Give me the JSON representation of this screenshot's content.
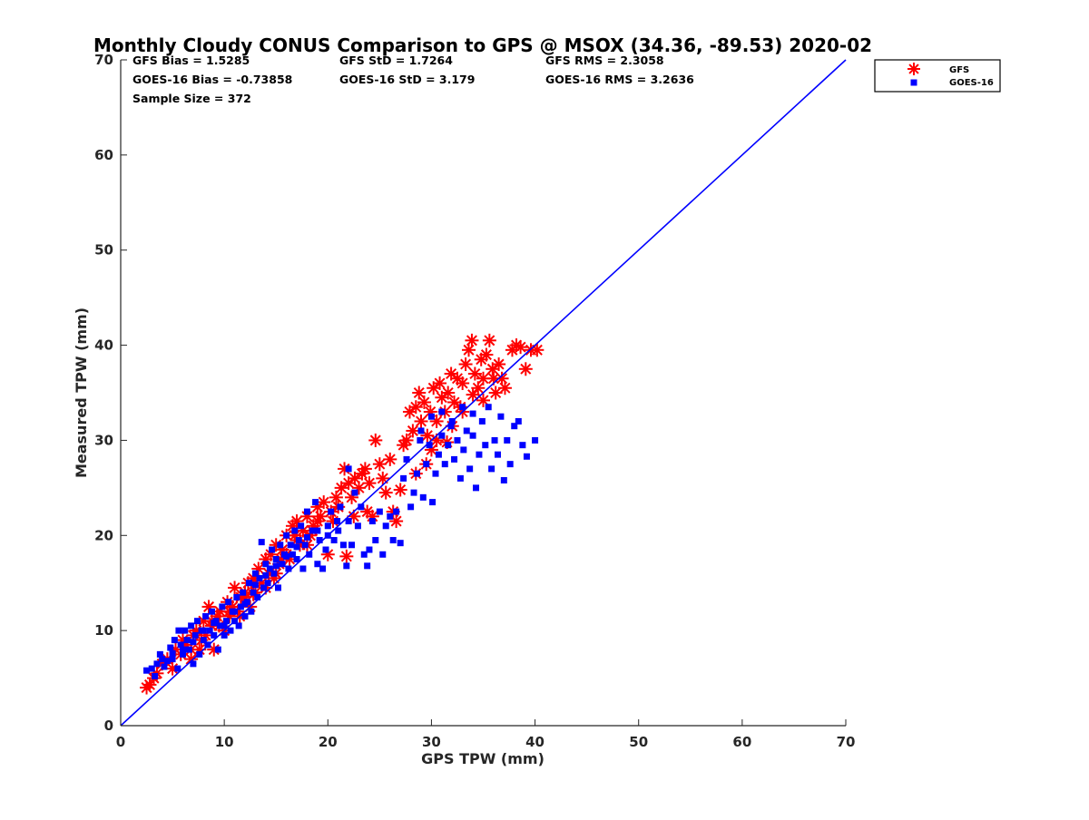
{
  "chart_data": {
    "type": "scatter",
    "title": "Monthly Cloudy CONUS Comparison to GPS @ MSOX (34.36, -89.53) 2020-02",
    "xlabel": "GPS TPW (mm)",
    "ylabel": "Measured TPW (mm)",
    "xlim": [
      0,
      70
    ],
    "ylim": [
      0,
      70
    ],
    "xticks": [
      "0",
      "10",
      "20",
      "30",
      "40",
      "50",
      "60",
      "70"
    ],
    "yticks": [
      "0",
      "10",
      "20",
      "30",
      "40",
      "50",
      "60",
      "70"
    ],
    "grid": false,
    "legend_position": "outside top-right",
    "stats": {
      "gfs_bias": "GFS Bias = 1.5285",
      "goes_bias": "GOES-16 Bias = -0.73858",
      "sample_size": "Sample Size = 372",
      "gfs_std": "GFS StD = 1.7264",
      "goes_std": "GOES-16 StD = 3.179",
      "gfs_rms": "GFS RMS = 2.3058",
      "goes_rms": "GOES-16 RMS = 3.2636"
    },
    "reference_line": {
      "x": [
        0,
        70
      ],
      "y": [
        0,
        70
      ],
      "color": "#0000ff"
    },
    "series": [
      {
        "name": "GFS",
        "marker": "asterisk",
        "color": "#ff0000",
        "points": [
          [
            2.5,
            4
          ],
          [
            2.8,
            4.3
          ],
          [
            3.2,
            5
          ],
          [
            3.5,
            5.5
          ],
          [
            4,
            6.5
          ],
          [
            4.5,
            7
          ],
          [
            5,
            6
          ],
          [
            5.3,
            8
          ],
          [
            5.8,
            7.5
          ],
          [
            6,
            9
          ],
          [
            6.3,
            8.5
          ],
          [
            6.8,
            7
          ],
          [
            7,
            9.5
          ],
          [
            7.3,
            10
          ],
          [
            7.6,
            8
          ],
          [
            8,
            11
          ],
          [
            8.2,
            9.5
          ],
          [
            8.5,
            12.5
          ],
          [
            8.8,
            10.5
          ],
          [
            9,
            8
          ],
          [
            9.3,
            11.5
          ],
          [
            9.6,
            12
          ],
          [
            10,
            10
          ],
          [
            10.3,
            13
          ],
          [
            10.5,
            11.5
          ],
          [
            10.8,
            12.5
          ],
          [
            11,
            14.5
          ],
          [
            11.3,
            12
          ],
          [
            11.6,
            13.5
          ],
          [
            12,
            14
          ],
          [
            12.3,
            15
          ],
          [
            12.5,
            12.5
          ],
          [
            12.8,
            15.5
          ],
          [
            13,
            14
          ],
          [
            13.3,
            16.5
          ],
          [
            13.6,
            15
          ],
          [
            14,
            17.5
          ],
          [
            14.3,
            16
          ],
          [
            14.5,
            18
          ],
          [
            14.8,
            15.5
          ],
          [
            15,
            19
          ],
          [
            15.3,
            17
          ],
          [
            15.6,
            18.5
          ],
          [
            16,
            20
          ],
          [
            16.3,
            17.5
          ],
          [
            16.6,
            21
          ],
          [
            17,
            21.5
          ],
          [
            17.3,
            19
          ],
          [
            17.6,
            20.5
          ],
          [
            18,
            22
          ],
          [
            18.3,
            20
          ],
          [
            18.6,
            21
          ],
          [
            19,
            23
          ],
          [
            19.3,
            22
          ],
          [
            19.6,
            23.5
          ],
          [
            20,
            18
          ],
          [
            20.3,
            22.5
          ],
          [
            20.8,
            24
          ],
          [
            21,
            23
          ],
          [
            21.3,
            25
          ],
          [
            21.6,
            27
          ],
          [
            21.8,
            17.8
          ],
          [
            22,
            25.5
          ],
          [
            22.3,
            24
          ],
          [
            22.6,
            26
          ],
          [
            23,
            25
          ],
          [
            23.3,
            26.5
          ],
          [
            23.6,
            27
          ],
          [
            23.8,
            22.5
          ],
          [
            24,
            25.5
          ],
          [
            24.3,
            22
          ],
          [
            24.6,
            30
          ],
          [
            25,
            27.5
          ],
          [
            25.3,
            26
          ],
          [
            25.6,
            24.5
          ],
          [
            26,
            28
          ],
          [
            26.3,
            22.5
          ],
          [
            26.6,
            21.5
          ],
          [
            27,
            24.8
          ],
          [
            27.3,
            29.5
          ],
          [
            27.6,
            30
          ],
          [
            27.9,
            33
          ],
          [
            28.2,
            31
          ],
          [
            28.5,
            33.5
          ],
          [
            28.8,
            35
          ],
          [
            29,
            32
          ],
          [
            29.3,
            34
          ],
          [
            29.6,
            30.5
          ],
          [
            29.9,
            33
          ],
          [
            30.2,
            35.5
          ],
          [
            30.5,
            32
          ],
          [
            30.8,
            36
          ],
          [
            31,
            34.5
          ],
          [
            31.3,
            33
          ],
          [
            31.6,
            35
          ],
          [
            31.9,
            37
          ],
          [
            32.2,
            34
          ],
          [
            32.5,
            36.5
          ],
          [
            32.8,
            33.5
          ],
          [
            33,
            36
          ],
          [
            33.3,
            38
          ],
          [
            33.6,
            39.5
          ],
          [
            33.9,
            40.5
          ],
          [
            34.2,
            37
          ],
          [
            34.5,
            35.5
          ],
          [
            34.8,
            38.5
          ],
          [
            35,
            36.5
          ],
          [
            35.3,
            39
          ],
          [
            35.6,
            40.5
          ],
          [
            35.9,
            37.5
          ],
          [
            36.2,
            35
          ],
          [
            36.5,
            38
          ],
          [
            36.8,
            36.5
          ],
          [
            37.1,
            35.5
          ],
          [
            37.8,
            39.5
          ],
          [
            38.2,
            40
          ],
          [
            38.6,
            39.8
          ],
          [
            39.1,
            37.5
          ],
          [
            39.6,
            39.5
          ],
          [
            40.2,
            39.5
          ],
          [
            30.5,
            30
          ],
          [
            31.5,
            29.8
          ],
          [
            29.5,
            27.5
          ],
          [
            28.5,
            26.5
          ],
          [
            30,
            29
          ],
          [
            32,
            31.5
          ],
          [
            33,
            33
          ],
          [
            34,
            34.8
          ],
          [
            35,
            34.2
          ],
          [
            36,
            36.5
          ],
          [
            12,
            13.5
          ],
          [
            13,
            15
          ],
          [
            14,
            14.5
          ],
          [
            15,
            16
          ],
          [
            16,
            18
          ],
          [
            17,
            19.5
          ],
          [
            18,
            19
          ],
          [
            19,
            21.5
          ],
          [
            10.5,
            12
          ],
          [
            9.5,
            10.5
          ],
          [
            8.8,
            11
          ],
          [
            7.8,
            9
          ],
          [
            6.8,
            8
          ],
          [
            11.5,
            11.5
          ],
          [
            12.8,
            13.8
          ],
          [
            15.5,
            17.5
          ],
          [
            16.8,
            20
          ],
          [
            18.5,
            20.5
          ],
          [
            20.5,
            21.5
          ],
          [
            22.5,
            22
          ]
        ]
      },
      {
        "name": "GOES-16",
        "marker": "square",
        "color": "#0000ff",
        "points": [
          [
            2.5,
            5.8
          ],
          [
            3,
            6
          ],
          [
            3.3,
            5.2
          ],
          [
            3.8,
            7.5
          ],
          [
            4.2,
            6.2
          ],
          [
            4.5,
            6.8
          ],
          [
            4.8,
            8.2
          ],
          [
            5,
            7
          ],
          [
            5.2,
            9
          ],
          [
            5.5,
            6
          ],
          [
            5.6,
            10
          ],
          [
            5.8,
            8.5
          ],
          [
            6,
            7.5
          ],
          [
            6.2,
            10
          ],
          [
            6.4,
            9
          ],
          [
            6.6,
            8
          ],
          [
            6.8,
            10.5
          ],
          [
            7,
            6.5
          ],
          [
            7.2,
            9.5
          ],
          [
            7.4,
            11
          ],
          [
            7.6,
            7.5
          ],
          [
            7.8,
            10
          ],
          [
            8,
            9
          ],
          [
            8.2,
            11.5
          ],
          [
            8.4,
            8.5
          ],
          [
            8.6,
            10
          ],
          [
            8.8,
            12
          ],
          [
            9,
            9.5
          ],
          [
            9.2,
            11
          ],
          [
            9.4,
            8
          ],
          [
            9.6,
            10.5
          ],
          [
            9.8,
            12.5
          ],
          [
            10,
            9.5
          ],
          [
            10.2,
            11
          ],
          [
            10.4,
            13
          ],
          [
            10.6,
            10
          ],
          [
            10.8,
            12
          ],
          [
            11,
            11
          ],
          [
            11.2,
            13.5
          ],
          [
            11.4,
            10.5
          ],
          [
            11.6,
            12.5
          ],
          [
            11.8,
            14
          ],
          [
            12,
            11.5
          ],
          [
            12.2,
            13
          ],
          [
            12.4,
            15
          ],
          [
            12.6,
            12
          ],
          [
            12.8,
            14
          ],
          [
            13,
            16
          ],
          [
            13.2,
            13.5
          ],
          [
            13.4,
            15.5
          ],
          [
            13.6,
            19.3
          ],
          [
            13.8,
            14.5
          ],
          [
            14,
            17
          ],
          [
            14.2,
            15
          ],
          [
            14.4,
            16.5
          ],
          [
            14.6,
            18.5
          ],
          [
            14.8,
            16
          ],
          [
            15,
            17.5
          ],
          [
            15.2,
            14.5
          ],
          [
            15.4,
            19
          ],
          [
            15.6,
            17
          ],
          [
            15.8,
            18
          ],
          [
            16,
            20
          ],
          [
            16.2,
            16.5
          ],
          [
            16.4,
            19
          ],
          [
            16.6,
            18
          ],
          [
            16.8,
            20.5
          ],
          [
            17,
            17.5
          ],
          [
            17.2,
            19.5
          ],
          [
            17.4,
            21
          ],
          [
            17.6,
            16.5
          ],
          [
            17.8,
            19
          ],
          [
            18,
            22.5
          ],
          [
            18.2,
            18
          ],
          [
            18.5,
            20.5
          ],
          [
            18.8,
            23.5
          ],
          [
            19,
            17
          ],
          [
            19.2,
            19.5
          ],
          [
            19.5,
            16.5
          ],
          [
            19.8,
            18.5
          ],
          [
            20,
            21
          ],
          [
            20.3,
            22.5
          ],
          [
            20.6,
            19.5
          ],
          [
            20.9,
            21.5
          ],
          [
            21.2,
            23
          ],
          [
            21.5,
            19
          ],
          [
            21.8,
            16.8
          ],
          [
            22,
            27
          ],
          [
            22.3,
            19
          ],
          [
            22.6,
            24.5
          ],
          [
            22.9,
            21
          ],
          [
            23.2,
            23
          ],
          [
            23.5,
            18
          ],
          [
            23.8,
            16.8
          ],
          [
            24,
            18.5
          ],
          [
            24.3,
            21.5
          ],
          [
            24.6,
            19.5
          ],
          [
            25,
            22.5
          ],
          [
            25.3,
            18
          ],
          [
            25.6,
            21
          ],
          [
            26,
            22
          ],
          [
            26.3,
            19.5
          ],
          [
            26.6,
            22.5
          ],
          [
            27,
            19.2
          ],
          [
            27.3,
            26
          ],
          [
            27.6,
            28
          ],
          [
            28,
            23
          ],
          [
            28.3,
            24.5
          ],
          [
            28.6,
            26.5
          ],
          [
            28.9,
            30
          ],
          [
            29.2,
            24
          ],
          [
            29.5,
            27.5
          ],
          [
            29.8,
            29.5
          ],
          [
            30.1,
            23.5
          ],
          [
            30.4,
            26.5
          ],
          [
            30.7,
            28.5
          ],
          [
            31,
            30.5
          ],
          [
            31.3,
            27.5
          ],
          [
            31.6,
            29.5
          ],
          [
            31.9,
            31.5
          ],
          [
            32.2,
            28
          ],
          [
            32.5,
            30
          ],
          [
            32.8,
            26
          ],
          [
            33.1,
            29
          ],
          [
            33.4,
            31
          ],
          [
            33.7,
            27
          ],
          [
            34,
            30.5
          ],
          [
            34.3,
            25
          ],
          [
            34.6,
            28.5
          ],
          [
            34.9,
            32
          ],
          [
            35.2,
            29.5
          ],
          [
            35.5,
            33.5
          ],
          [
            35.8,
            27
          ],
          [
            36.1,
            30
          ],
          [
            36.4,
            28.5
          ],
          [
            36.7,
            32.5
          ],
          [
            37,
            25.8
          ],
          [
            37.3,
            30
          ],
          [
            37.6,
            27.5
          ],
          [
            38,
            31.5
          ],
          [
            38.4,
            32
          ],
          [
            38.8,
            29.5
          ],
          [
            39.2,
            28.3
          ],
          [
            40,
            30
          ],
          [
            29,
            31
          ],
          [
            30,
            32.5
          ],
          [
            31,
            33
          ],
          [
            32,
            32
          ],
          [
            33,
            33.5
          ],
          [
            34,
            32.8
          ],
          [
            10,
            10.5
          ],
          [
            11,
            12
          ],
          [
            12,
            12.8
          ],
          [
            13,
            14.8
          ],
          [
            14,
            15.8
          ],
          [
            15,
            16.8
          ],
          [
            16,
            17.8
          ],
          [
            17,
            18.8
          ],
          [
            18,
            19.8
          ],
          [
            19,
            20.5
          ],
          [
            8,
            10
          ],
          [
            9,
            10.8
          ],
          [
            7,
            8.8
          ],
          [
            6,
            8
          ],
          [
            5,
            7.6
          ],
          [
            4,
            7
          ],
          [
            3.5,
            6.5
          ],
          [
            20,
            20
          ],
          [
            21,
            20.5
          ],
          [
            22,
            21.5
          ]
        ]
      }
    ]
  }
}
